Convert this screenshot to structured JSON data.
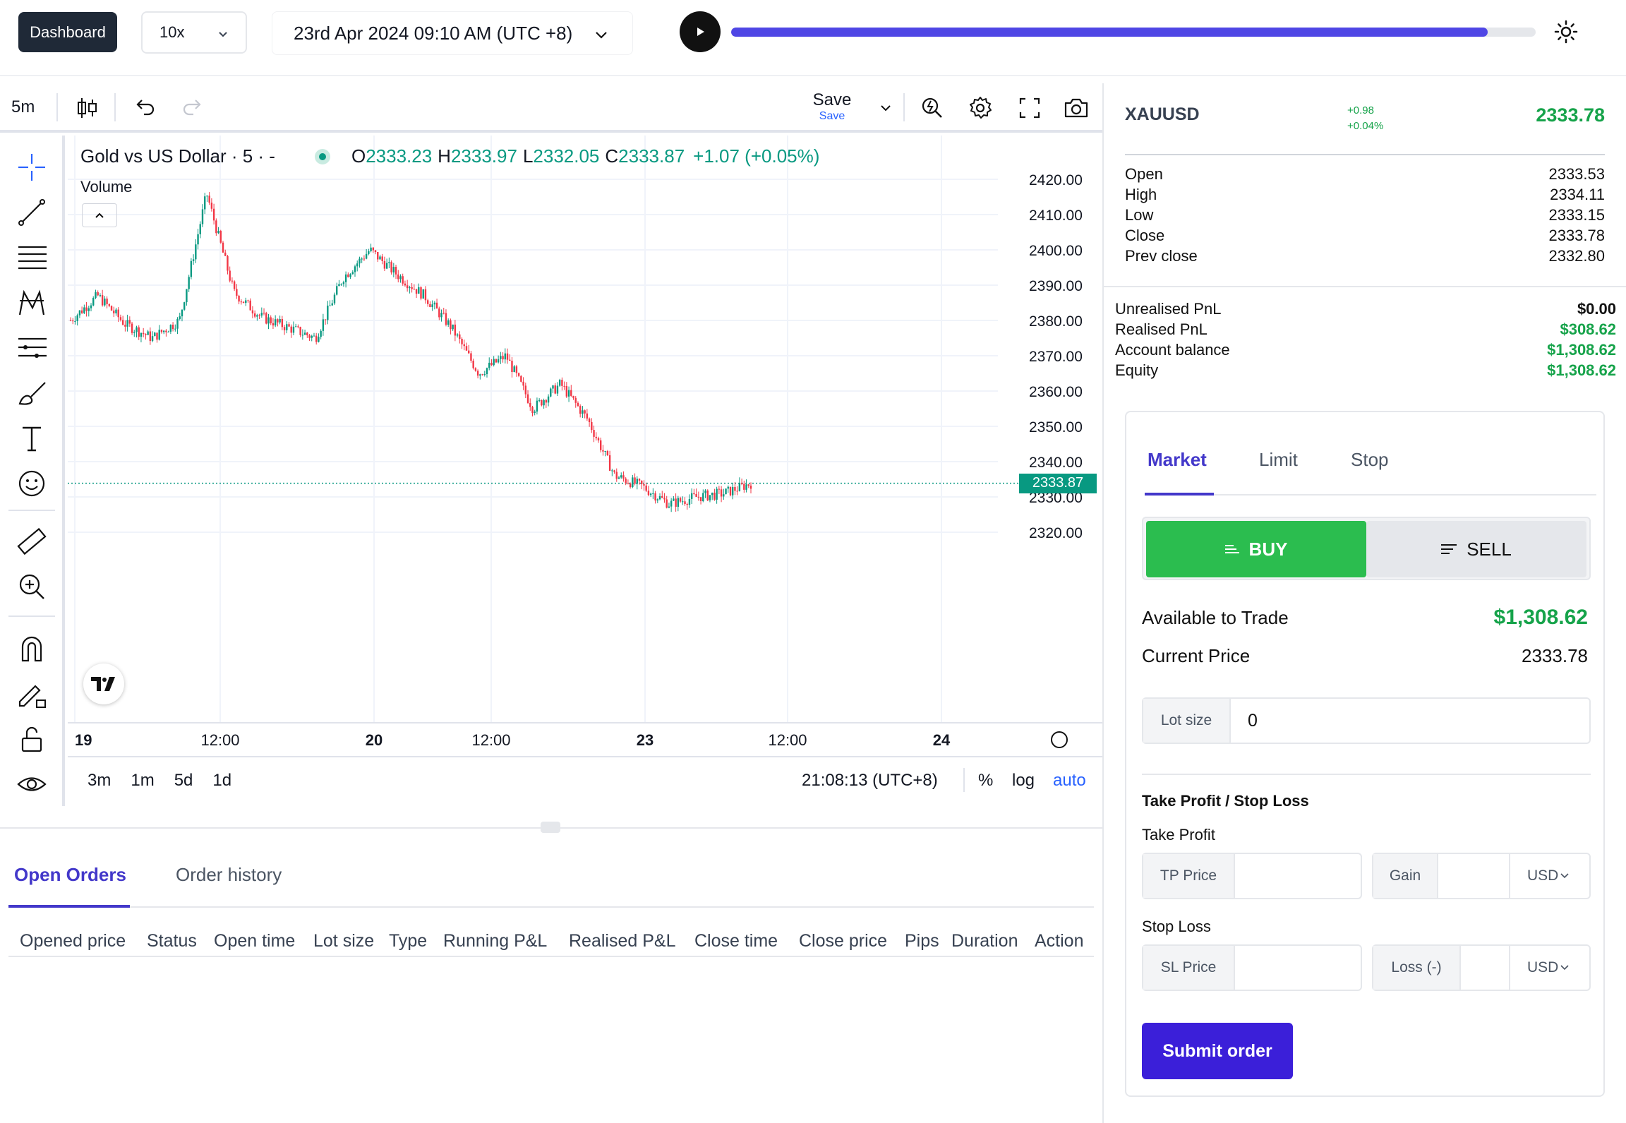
{
  "topbar": {
    "dashboard_label": "Dashboard",
    "speed": "10x",
    "datetime": "23rd Apr 2024 09:10 AM (UTC +8)",
    "replay_progress": 0.94
  },
  "chart_toolbar": {
    "interval": "5m",
    "save_label": "Save",
    "save_sub": "Save"
  },
  "chart": {
    "legend_title": "Gold vs US Dollar · 5 · -",
    "ohlc": {
      "o_key": "O",
      "o": "2333.23",
      "h_key": "H",
      "h": "2333.97",
      "l_key": "L",
      "l": "2332.05",
      "c_key": "C",
      "c": "2333.87",
      "change": "+1.07 (+0.05%)"
    },
    "volume_label": "Volume",
    "last_price_tag": "2333.87",
    "ranges": [
      "3m",
      "1m",
      "5d",
      "1d"
    ],
    "clock": "21:08:13 (UTC+8)",
    "opt_percent": "%",
    "opt_log": "log",
    "opt_auto": "auto",
    "colors": {
      "up": "#089981",
      "down": "#f23645"
    }
  },
  "chart_data": {
    "type": "line",
    "title": "Gold vs US Dollar · 5 · -",
    "xlabel": "",
    "ylabel": "",
    "ylim": [
      2315,
      2425
    ],
    "y_ticks": [
      "2420.00",
      "2410.00",
      "2400.00",
      "2390.00",
      "2380.00",
      "2370.00",
      "2360.00",
      "2350.00",
      "2340.00",
      "2330.00",
      "2320.00"
    ],
    "x_ticks": [
      "19",
      "12:00",
      "20",
      "12:00",
      "23",
      "12:00",
      "24"
    ],
    "x": [
      "19 00:00",
      "19 03:00",
      "19 06:00",
      "19 08:00",
      "19 09:00",
      "19 10:00",
      "19 12:00",
      "19 15:00",
      "19 18:00",
      "19 21:00",
      "20 00:00",
      "20 02:00",
      "20 03:00",
      "20 04:00",
      "20 05:00",
      "20 07:00",
      "20 09:00",
      "20 12:00",
      "20 15:00",
      "20 18:00",
      "23 00:00",
      "23 02:00",
      "23 04:00",
      "23 06:00",
      "23 08:00",
      "23 09:10"
    ],
    "values": [
      2380,
      2387,
      2379,
      2375,
      2380,
      2416,
      2388,
      2381,
      2378,
      2375,
      2392,
      2400,
      2393,
      2387,
      2378,
      2365,
      2370,
      2355,
      2362,
      2352,
      2336,
      2333,
      2328,
      2330,
      2331,
      2333.87
    ],
    "last_value": 2333.87
  },
  "orders": {
    "tabs": [
      "Open Orders",
      "Order history"
    ],
    "columns": [
      "Opened price",
      "Status",
      "Open time",
      "Lot size",
      "Type",
      "Running P&L",
      "Realised P&L",
      "Close time",
      "Close price",
      "Pips",
      "Duration",
      "Action"
    ]
  },
  "quote": {
    "symbol": "XAUUSD",
    "change_abs": "+0.98",
    "change_pct": "+0.04%",
    "last": "2333.78",
    "stats": [
      {
        "label": "Open",
        "value": "2333.53"
      },
      {
        "label": "High",
        "value": "2334.11"
      },
      {
        "label": "Low",
        "value": "2333.15"
      },
      {
        "label": "Close",
        "value": "2333.78"
      },
      {
        "label": "Prev close",
        "value": "2332.80"
      }
    ]
  },
  "account": [
    {
      "label": "Unrealised PnL",
      "value": "$0.00"
    },
    {
      "label": "Realised PnL",
      "value": "$308.62"
    },
    {
      "label": "Account balance",
      "value": "$1,308.62"
    },
    {
      "label": "Equity",
      "value": "$1,308.62"
    }
  ],
  "order_form": {
    "tabs": [
      "Market",
      "Limit",
      "Stop"
    ],
    "buy_label": "BUY",
    "sell_label": "SELL",
    "available_label": "Available to Trade",
    "available_value": "$1,308.62",
    "current_price_label": "Current Price",
    "current_price_value": "2333.78",
    "lot_size_label": "Lot size",
    "lot_size_value": "0",
    "tpsl_title": "Take Profit / Stop Loss",
    "tp_title": "Take Profit",
    "tp_price_label": "TP Price",
    "gain_label": "Gain",
    "currency": "USD",
    "sl_title": "Stop Loss",
    "sl_price_label": "SL Price",
    "loss_label": "Loss (-)",
    "submit_label": "Submit order",
    "accent": "#3b1fd9",
    "buy_color": "#2bbd4f"
  }
}
